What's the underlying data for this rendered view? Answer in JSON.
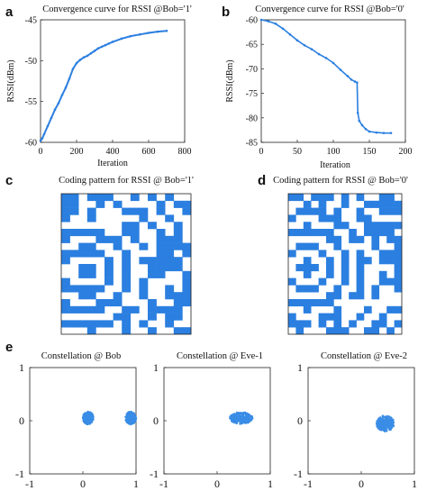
{
  "chart_data": [
    {
      "panel": "a",
      "type": "line",
      "title": "Convergence curve for RSSI @Bob='1'",
      "xlabel": "Iteration",
      "ylabel": "RSSI(dBm)",
      "xlim": [
        0,
        800
      ],
      "ylim": [
        -60,
        -45
      ],
      "xticks": [
        "0",
        "200",
        "400",
        "600",
        "800"
      ],
      "yticks": [
        "-60",
        "-55",
        "-50",
        "-45"
      ],
      "color": "#2b7fe0",
      "series": [
        {
          "x": [
            0,
            10,
            20,
            40,
            60,
            80,
            100,
            120,
            140,
            160,
            180,
            200,
            220,
            240,
            260,
            280,
            300,
            320,
            340,
            360,
            380,
            400,
            450,
            500,
            550,
            600,
            650,
            700
          ],
          "y": [
            -59.8,
            -59.5,
            -59.0,
            -58.0,
            -57.0,
            -56.0,
            -55.2,
            -54.2,
            -53.3,
            -52.2,
            -51.0,
            -50.3,
            -49.9,
            -49.6,
            -49.4,
            -49.1,
            -48.8,
            -48.5,
            -48.3,
            -48.1,
            -47.9,
            -47.7,
            -47.3,
            -47.0,
            -46.8,
            -46.6,
            -46.45,
            -46.35
          ]
        }
      ]
    },
    {
      "panel": "b",
      "type": "line",
      "title": "Convergence curve for RSSI @Bob='0'",
      "xlabel": "Iteration",
      "ylabel": "RSSI(dBm)",
      "xlim": [
        0,
        200
      ],
      "ylim": [
        -85,
        -60
      ],
      "xticks": [
        "0",
        "50",
        "100",
        "150",
        "200"
      ],
      "yticks": [
        "-60",
        "-65",
        "-70",
        "-75",
        "-80",
        "-85"
      ],
      "color": "#2b7fe0",
      "series": [
        {
          "x": [
            0,
            10,
            20,
            30,
            40,
            50,
            60,
            70,
            80,
            90,
            100,
            110,
            120,
            125,
            130,
            133,
            134,
            136,
            140,
            145,
            150,
            160,
            170,
            180
          ],
          "y": [
            -60.0,
            -60.3,
            -60.8,
            -61.8,
            -63.0,
            -64.2,
            -65.2,
            -66.0,
            -67.0,
            -67.8,
            -68.8,
            -70.2,
            -71.5,
            -72.2,
            -72.6,
            -72.8,
            -79.0,
            -80.6,
            -81.5,
            -82.3,
            -82.8,
            -83.0,
            -83.1,
            -83.1
          ]
        }
      ]
    },
    {
      "panel": "c",
      "type": "heatmap",
      "title": "Coding pattern for RSSI @ Bob='1'",
      "colors": [
        "#ffffff",
        "#2b7fe0"
      ],
      "rows": 20,
      "cols": 15,
      "pattern": "concentric-arcs-centered-left"
    },
    {
      "panel": "d",
      "type": "heatmap",
      "title": "Coding pattern for RSSI @ Bob='0'",
      "colors": [
        "#ffffff",
        "#2b7fe0"
      ],
      "rows": 20,
      "cols": 15,
      "pattern": "concentric-arcs-centered-left"
    },
    {
      "panel": "e",
      "type": "scatter",
      "title": "Constellation @ Bob",
      "xlim": [
        -1,
        1
      ],
      "ylim": [
        -1,
        1
      ],
      "xticks": [
        "-1",
        "0",
        "1"
      ],
      "yticks": [
        "1",
        "0",
        "-1"
      ],
      "color": "#3a8de6",
      "clusters": [
        {
          "x": 0.1,
          "y": 0.05,
          "rx": 0.1,
          "ry": 0.12
        },
        {
          "x": 0.9,
          "y": 0.05,
          "rx": 0.1,
          "ry": 0.12
        }
      ]
    },
    {
      "panel": "e",
      "type": "scatter",
      "title": "Constellation @ Eve-1",
      "xlim": [
        -1,
        1
      ],
      "ylim": [
        -1,
        1
      ],
      "xticks": [
        "-1",
        "0",
        "1"
      ],
      "yticks": [
        "1",
        "0",
        "-1"
      ],
      "color": "#3a8de6",
      "clusters": [
        {
          "x": 0.45,
          "y": 0.05,
          "rx": 0.22,
          "ry": 0.11
        }
      ]
    },
    {
      "panel": "e",
      "type": "scatter",
      "title": "Constellation @ Eve-2",
      "xlim": [
        -1,
        1
      ],
      "ylim": [
        -1,
        1
      ],
      "xticks": [
        "-1",
        "0",
        "1"
      ],
      "yticks": [
        "1",
        "0",
        "-1"
      ],
      "color": "#3a8de6",
      "clusters": [
        {
          "x": 0.45,
          "y": -0.05,
          "rx": 0.17,
          "ry": 0.15
        }
      ]
    }
  ],
  "labels": {
    "a": "a",
    "b": "b",
    "c": "c",
    "d": "d",
    "e": "e"
  }
}
